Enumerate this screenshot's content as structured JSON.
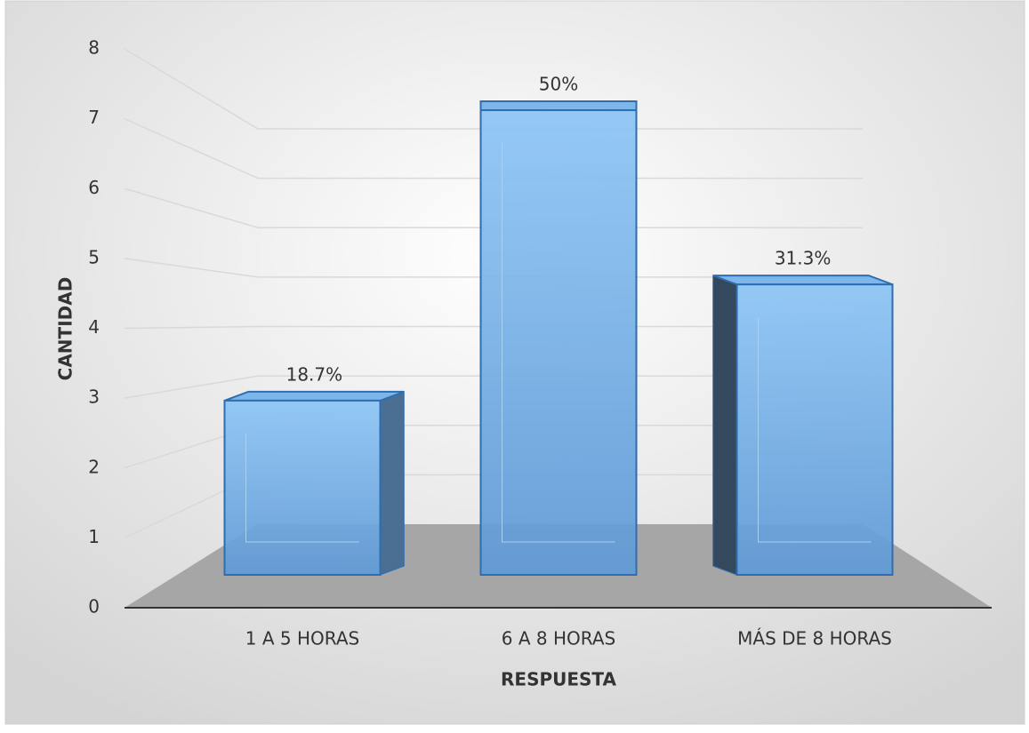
{
  "chart_data": {
    "type": "bar3d",
    "categories": [
      "1 A 5 HORAS",
      "6 A 8 HORAS",
      "MÁS DE 8 HORAS"
    ],
    "values": [
      3,
      8,
      5
    ],
    "data_labels": [
      "18.7%",
      "50%",
      "31.3%"
    ],
    "color": "#6fa8e0",
    "x_label": "RESPUESTA",
    "y_label": "CANTIDAD",
    "ylim": [
      0,
      8
    ],
    "yticks": [
      0,
      1,
      2,
      3,
      4,
      5,
      6,
      7,
      8
    ],
    "grid": true
  }
}
